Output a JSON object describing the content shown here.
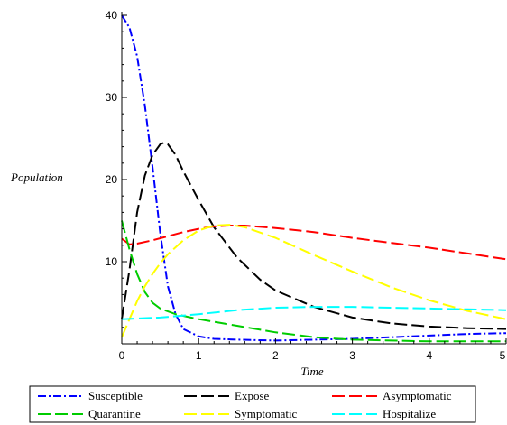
{
  "chart_data": {
    "type": "line",
    "title": "",
    "xlabel": "Time",
    "ylabel": "Population",
    "xlim": [
      0,
      5
    ],
    "ylim": [
      0,
      40
    ],
    "x_ticks": [
      "0",
      "1",
      "2",
      "3",
      "4",
      "5"
    ],
    "y_ticks": [
      "10",
      "20",
      "30",
      "40"
    ],
    "grid": false,
    "legend": "bottom",
    "series": [
      {
        "name": "Susceptible",
        "color": "#0000ff",
        "dash": "dashdot",
        "x": [
          0,
          0.1,
          0.2,
          0.3,
          0.4,
          0.5,
          0.6,
          0.7,
          0.8,
          1.0,
          1.2,
          1.5,
          2.0,
          2.5,
          3.0,
          3.5,
          4.0,
          4.5,
          5.0
        ],
        "y": [
          40,
          38.5,
          35,
          29,
          21.5,
          13.5,
          7,
          3.6,
          1.8,
          0.9,
          0.6,
          0.5,
          0.4,
          0.5,
          0.6,
          0.8,
          1.0,
          1.2,
          1.3
        ]
      },
      {
        "name": "Expose",
        "color": "#000000",
        "dash": "longdash",
        "x": [
          0,
          0.1,
          0.2,
          0.3,
          0.4,
          0.5,
          0.55,
          0.6,
          0.7,
          0.8,
          1.0,
          1.2,
          1.5,
          1.8,
          2.0,
          2.5,
          3.0,
          3.5,
          4.0,
          4.5,
          5.0
        ],
        "y": [
          3,
          9,
          16,
          20.5,
          23,
          24.3,
          24.5,
          24.3,
          23,
          21,
          17.5,
          14.2,
          10.5,
          7.8,
          6.5,
          4.5,
          3.2,
          2.5,
          2.1,
          1.9,
          1.8
        ]
      },
      {
        "name": "Asymptomatic",
        "color": "#ff0000",
        "dash": "longdash",
        "x": [
          0,
          0.1,
          0.2,
          0.4,
          0.6,
          0.8,
          1.0,
          1.2,
          1.4,
          1.6,
          2.0,
          2.5,
          3.0,
          3.5,
          4.0,
          4.5,
          5.0
        ],
        "y": [
          12.8,
          12.1,
          12.2,
          12.6,
          13.1,
          13.6,
          14.0,
          14.3,
          14.4,
          14.4,
          14.1,
          13.6,
          12.9,
          12.3,
          11.7,
          11.0,
          10.3
        ]
      },
      {
        "name": "Quarantine",
        "color": "#00cc00",
        "dash": "longdash",
        "x": [
          0,
          0.1,
          0.2,
          0.3,
          0.4,
          0.5,
          0.7,
          1.0,
          1.5,
          2.0,
          2.5,
          3.0,
          3.5,
          4.0,
          4.5,
          5.0
        ],
        "y": [
          15,
          11.5,
          8.5,
          6.3,
          5,
          4.3,
          3.6,
          3,
          2.2,
          1.4,
          0.8,
          0.5,
          0.4,
          0.3,
          0.3,
          0.3
        ]
      },
      {
        "name": "Symptomatic",
        "color": "#ffff00",
        "dash": "longdash",
        "x": [
          0,
          0.1,
          0.2,
          0.3,
          0.4,
          0.5,
          0.6,
          0.8,
          1.0,
          1.2,
          1.4,
          1.6,
          2.0,
          2.5,
          3.0,
          3.5,
          4.0,
          4.5,
          5.0
        ],
        "y": [
          0.8,
          3,
          5.2,
          7,
          8.5,
          9.8,
          10.9,
          12.6,
          13.8,
          14.4,
          14.5,
          14.2,
          12.9,
          10.8,
          8.8,
          6.9,
          5.3,
          4.0,
          3.0
        ]
      },
      {
        "name": "Hospitalize",
        "color": "#00ffff",
        "dash": "longdash",
        "x": [
          0,
          0.5,
          1.0,
          1.5,
          2.0,
          2.5,
          3.0,
          3.5,
          4.0,
          4.5,
          5.0
        ],
        "y": [
          3,
          3.2,
          3.6,
          4.1,
          4.4,
          4.5,
          4.5,
          4.4,
          4.3,
          4.2,
          4.1
        ]
      }
    ]
  }
}
